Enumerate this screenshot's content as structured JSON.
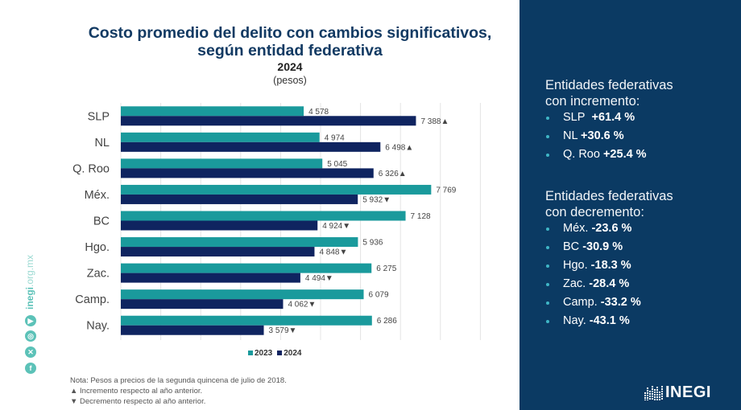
{
  "chart_data": {
    "type": "bar",
    "orientation": "horizontal",
    "title": "Costo promedio del delito con cambios significativos, según entidad federativa",
    "title_line1": "Costo promedio del delito con cambios significativos,",
    "title_line2": "según entidad federativa",
    "subtitle_year": "2024",
    "units": "(pesos)",
    "xlabel": "",
    "ylabel": "",
    "xlim": [
      0,
      9000
    ],
    "grid": true,
    "grid_step": 1000,
    "categories": [
      "SLP",
      "NL",
      "Q. Roo",
      "Méx.",
      "BC",
      "Hgo.",
      "Zac.",
      "Camp.",
      "Nay."
    ],
    "series": [
      {
        "name": "2023",
        "color": "#1a9a9c",
        "values": [
          4578,
          4974,
          5045,
          7769,
          7128,
          5936,
          6275,
          6079,
          6286
        ],
        "labels": [
          "4 578",
          "4 974",
          "5 045",
          "7 769",
          "7 128",
          "5 936",
          "6 275",
          "6 079",
          "6 286"
        ]
      },
      {
        "name": "2024",
        "color": "#0f2460",
        "values": [
          7388,
          6498,
          6326,
          5932,
          4924,
          4848,
          4494,
          4062,
          3579
        ],
        "labels": [
          "7 388",
          "6 498",
          "6 326",
          "5 932",
          "4 924",
          "4 848",
          "4 494",
          "4 062",
          "3 579"
        ],
        "markers": [
          "▲",
          "▲",
          "▲",
          "▼",
          "▼",
          "▼",
          "▼",
          "▼",
          "▼"
        ]
      }
    ],
    "legend": [
      "2023",
      "2024"
    ],
    "legend_position": "bottom"
  },
  "notes": {
    "line1": "Nota: Pesos a precios de la segunda quincena de julio de 2018.",
    "line2": "▲ Incremento respecto al año anterior.",
    "line3": "▼ Decremento respecto al año anterior."
  },
  "social": {
    "site_bold": "inegi",
    "site_light": ".org.mx",
    "icons": [
      "youtube-icon",
      "instagram-icon",
      "x-icon",
      "facebook-icon"
    ]
  },
  "panel": {
    "increase_heading_1": "Entidades federativas",
    "increase_heading_2": "con incremento:",
    "increase": [
      {
        "state": "SLP",
        "value": "+61.4 %"
      },
      {
        "state": "NL",
        "value": "+30.6 %"
      },
      {
        "state": "Q. Roo",
        "value": "+25.4 %"
      }
    ],
    "decrease_heading_1": "Entidades federativas",
    "decrease_heading_2": "con decremento:",
    "decrease": [
      {
        "state": "Méx.",
        "value": "-23.6 %"
      },
      {
        "state": "BC",
        "value": "-30.9 %"
      },
      {
        "state": "Hgo.",
        "value": "-18.3 %"
      },
      {
        "state": "Zac.",
        "value": "-28.4 %"
      },
      {
        "state": "Camp.",
        "value": "-33.2 %"
      },
      {
        "state": "Nay.",
        "value": "-43.1 %"
      }
    ],
    "logo_text": "INEGI"
  },
  "colors": {
    "panel_bg": "#0b3a63",
    "title": "#123a63",
    "bar_2023": "#1a9a9c",
    "bar_2024": "#0f2460",
    "accent": "#5cc2b8"
  }
}
